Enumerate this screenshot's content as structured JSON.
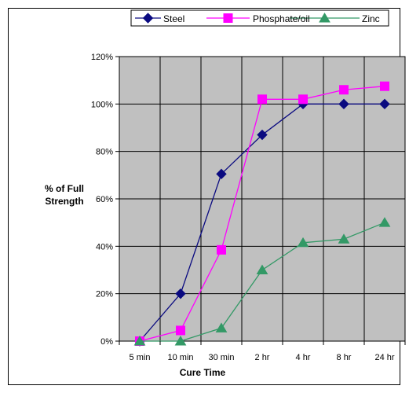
{
  "chart_data": {
    "type": "line",
    "categories": [
      "5 min",
      "10 min",
      "30 min",
      "2 hr",
      "4 hr",
      "8 hr",
      "24 hr"
    ],
    "series": [
      {
        "name": "Steel",
        "values": [
          0,
          20,
          70.5,
          87,
          100,
          100,
          100
        ],
        "color": "#0a0a80",
        "marker": "diamond"
      },
      {
        "name": "Phosphate/oil",
        "values": [
          0,
          4.5,
          38.5,
          102,
          102,
          106,
          107.5
        ],
        "color": "#ff00ff",
        "marker": "square"
      },
      {
        "name": "Zinc",
        "values": [
          0,
          0,
          5.5,
          30,
          41.5,
          43,
          50
        ],
        "color": "#339966",
        "marker": "triangle"
      }
    ],
    "title": "",
    "xlabel": "Cure Time",
    "ylabel_lines": [
      "% of Full",
      "Strength"
    ],
    "ylim": [
      0,
      120
    ],
    "yticks": [
      "0%",
      "20%",
      "40%",
      "60%",
      "80%",
      "100%",
      "120%"
    ],
    "grid": true,
    "plot_background": "#c0c0c0",
    "legend_position": "top"
  }
}
